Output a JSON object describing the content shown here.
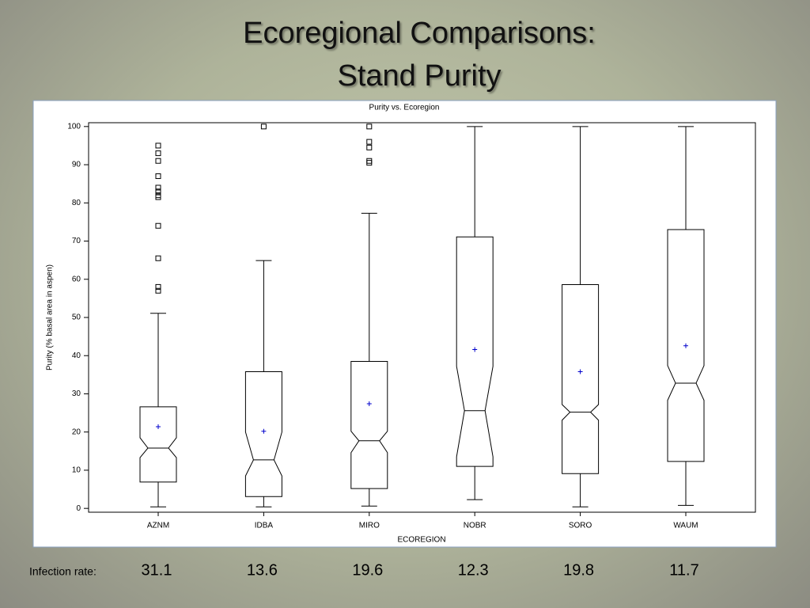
{
  "slide_title": [
    "Ecoregional Comparisons:",
    "Stand Purity"
  ],
  "chart_data": {
    "type": "box",
    "title": "Purity vs. Ecoregion",
    "x_label": "ECOREGION",
    "y_label": "Purity (% basal area in aspen)",
    "categories": [
      "AZNM",
      "IDBA",
      "MIRO",
      "NOBR",
      "SORO",
      "WAUM"
    ],
    "color": "#000000",
    "mean_color": "#0000cc",
    "ylim": [
      -1,
      101
    ],
    "yticks": [
      0,
      10,
      20,
      30,
      40,
      50,
      60,
      70,
      80,
      90,
      100
    ],
    "boxes": [
      {
        "whisker_low": 0.4,
        "q1": 6.9,
        "notch_low": 13.3,
        "median": 15.8,
        "notch_high": 18.5,
        "q3": 26.6,
        "whisker_high": 51.1,
        "mean": 21.4,
        "outliers": [
          95,
          93,
          91,
          87,
          84,
          83,
          82,
          81.5,
          74,
          65.5,
          58,
          57
        ]
      },
      {
        "whisker_low": 0.4,
        "q1": 3.1,
        "notch_low": 8.5,
        "median": 12.7,
        "notch_high": 20,
        "q3": 35.8,
        "whisker_high": 64.9,
        "mean": 20.2,
        "outliers": [
          100
        ]
      },
      {
        "whisker_low": 0.6,
        "q1": 5.2,
        "notch_low": 14.6,
        "median": 17.7,
        "notch_high": 20.2,
        "q3": 38.5,
        "whisker_high": 77.3,
        "mean": 27.4,
        "outliers": [
          100,
          96,
          94.5,
          91,
          90.5
        ]
      },
      {
        "whisker_low": 2.3,
        "q1": 11,
        "notch_low": 13.5,
        "median": 25.6,
        "notch_high": 37.2,
        "q3": 71.1,
        "whisker_high": 100,
        "mean": 41.6,
        "outliers": []
      },
      {
        "whisker_low": 0.4,
        "q1": 9.1,
        "notch_low": 23.1,
        "median": 25.2,
        "notch_high": 27.2,
        "q3": 58.6,
        "whisker_high": 100,
        "mean": 35.8,
        "outliers": []
      },
      {
        "whisker_low": 0.8,
        "q1": 12.3,
        "notch_low": 28.3,
        "median": 32.8,
        "notch_high": 37.4,
        "q3": 73,
        "whisker_high": 100,
        "mean": 42.6,
        "outliers": []
      }
    ]
  },
  "infection": {
    "label": "Infection rate:",
    "values": [
      "31.1",
      "13.6",
      "19.6",
      "12.3",
      "19.8",
      "11.7"
    ]
  }
}
